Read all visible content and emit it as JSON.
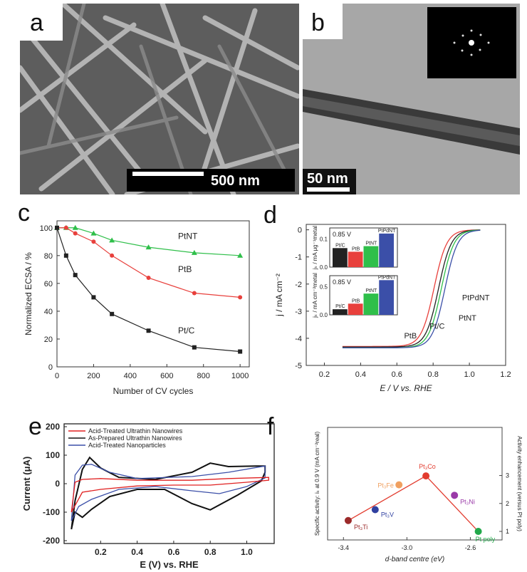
{
  "panels": {
    "a": {
      "label": "a",
      "scale_bar": "500 nm"
    },
    "b": {
      "label": "b",
      "scale_bar": "50 nm"
    },
    "c": {
      "label": "c"
    },
    "d": {
      "label": "d"
    },
    "e": {
      "label": "e"
    },
    "f": {
      "label": "f"
    }
  },
  "colors": {
    "black": "#222222",
    "red": "#e8403c",
    "green": "#2fbf4a",
    "blue": "#3b4fa8",
    "line_f": "#e23b2e"
  },
  "chart_data": [
    {
      "id": "c",
      "type": "line",
      "title": "",
      "xlabel": "Number of CV cycles",
      "ylabel": "Normalized ECSA / %",
      "xlim": [
        0,
        1050
      ],
      "ylim": [
        0,
        105
      ],
      "xticks": [
        "0",
        "200",
        "400",
        "600",
        "800",
        "1000"
      ],
      "yticks": [
        "0",
        "20",
        "40",
        "60",
        "80",
        "100"
      ],
      "series": [
        {
          "name": "PtNT",
          "color": "#2fbf4a",
          "marker": "triangle",
          "x": [
            0,
            50,
            100,
            200,
            300,
            500,
            750,
            1000
          ],
          "y": [
            100,
            100,
            100,
            96,
            91,
            86,
            82,
            80
          ]
        },
        {
          "name": "PtB",
          "color": "#e8403c",
          "marker": "circle",
          "x": [
            0,
            50,
            100,
            200,
            300,
            500,
            750,
            1000
          ],
          "y": [
            100,
            100,
            96,
            90,
            80,
            64,
            53,
            50
          ]
        },
        {
          "name": "Pt/C",
          "color": "#222222",
          "marker": "square",
          "x": [
            0,
            50,
            100,
            200,
            300,
            500,
            750,
            1000
          ],
          "y": [
            100,
            80,
            66,
            50,
            38,
            26,
            14,
            11
          ]
        }
      ]
    },
    {
      "id": "d",
      "type": "line",
      "xlabel": "E / V vs. RHE",
      "ylabel": "j / mA cm⁻²",
      "xlim": [
        0.1,
        1.2
      ],
      "ylim": [
        -5,
        0.2
      ],
      "xticks": [
        "0.2",
        "0.4",
        "0.6",
        "0.8",
        "1.0",
        "1.2"
      ],
      "yticks": [
        "0",
        "-1",
        "-2",
        "-3",
        "-4",
        "-5"
      ],
      "series": [
        {
          "name": "Pt/C",
          "color": "#e8403c",
          "half_wave": 0.805,
          "limit": -4.3
        },
        {
          "name": "PtB",
          "color": "#222222",
          "half_wave": 0.83,
          "limit": -4.32
        },
        {
          "name": "PtNT",
          "color": "#2fbf4a",
          "half_wave": 0.845,
          "limit": -4.35
        },
        {
          "name": "PtPdNT",
          "color": "#3b4fa8",
          "half_wave": 0.865,
          "limit": -4.35
        }
      ],
      "labels": [
        "PtPdNT",
        "PtNT",
        "Pt/C",
        "PtB"
      ],
      "inset_top": {
        "condition": "0.85 V",
        "ylabel": "jₖ / mA μg⁻¹metal",
        "yticks": [
          "0.0",
          "0.1"
        ],
        "categories": [
          "Pt/C",
          "PtB",
          "PtNT",
          "PtPdNT"
        ],
        "values": [
          0.068,
          0.055,
          0.075,
          0.12
        ],
        "ymax": 0.14
      },
      "inset_bottom": {
        "condition": "0.85 V",
        "ylabel": "jₖ / mA cm⁻²metal",
        "yticks": [
          "0.0",
          "0.5"
        ],
        "categories": [
          "Pt/C",
          "PtB",
          "PtNT",
          "PtPdNT"
        ],
        "values": [
          0.1,
          0.2,
          0.38,
          0.62
        ],
        "ymax": 0.7
      }
    },
    {
      "id": "e",
      "type": "line",
      "xlabel": "E (V) vs. RHE",
      "ylabel": "Current (μA)",
      "xlim": [
        0,
        1.15
      ],
      "ylim": [
        -210,
        210
      ],
      "xticks": [
        "0.2",
        "0.4",
        "0.6",
        "0.8",
        "1.0"
      ],
      "yticks": [
        "200",
        "100",
        "0",
        "-100",
        "-200"
      ],
      "legend": [
        "Acid-Treated Ultrathin Nanowires",
        "As-Prepared Ultrathin Nanowires",
        "Acid-Treated Nanoparticles"
      ]
    },
    {
      "id": "f",
      "type": "scatter",
      "xlabel": "d-band centre (eV)",
      "ylabel": "Specific activity: iₖ at 0.9 V (mA cm⁻²real)",
      "ylabel_right": "Activity enhancement (versus Pt poly)",
      "xlim": [
        -3.5,
        -2.4
      ],
      "ylim": [
        0.5,
        3.4
      ],
      "xticks": [
        "-3.4",
        "-3.0",
        "-2.6"
      ],
      "yticks_right": [
        "1",
        "2",
        "3"
      ],
      "points": [
        {
          "name": "Pt₃Ti",
          "x": -3.37,
          "y": 1.0,
          "color": "#9b2a2a"
        },
        {
          "name": "Pt₃V",
          "x": -3.2,
          "y": 1.28,
          "color": "#3040a0"
        },
        {
          "name": "Pt₃Fe",
          "x": -3.05,
          "y": 1.92,
          "color": "#f0a060"
        },
        {
          "name": "Pt₃Co",
          "x": -2.88,
          "y": 2.15,
          "color": "#e23b2e"
        },
        {
          "name": "Pt₃Ni",
          "x": -2.7,
          "y": 1.65,
          "color": "#9a3aa8"
        },
        {
          "name": "Pt poly",
          "x": -2.55,
          "y": 0.72,
          "color": "#22a84a"
        }
      ]
    }
  ]
}
